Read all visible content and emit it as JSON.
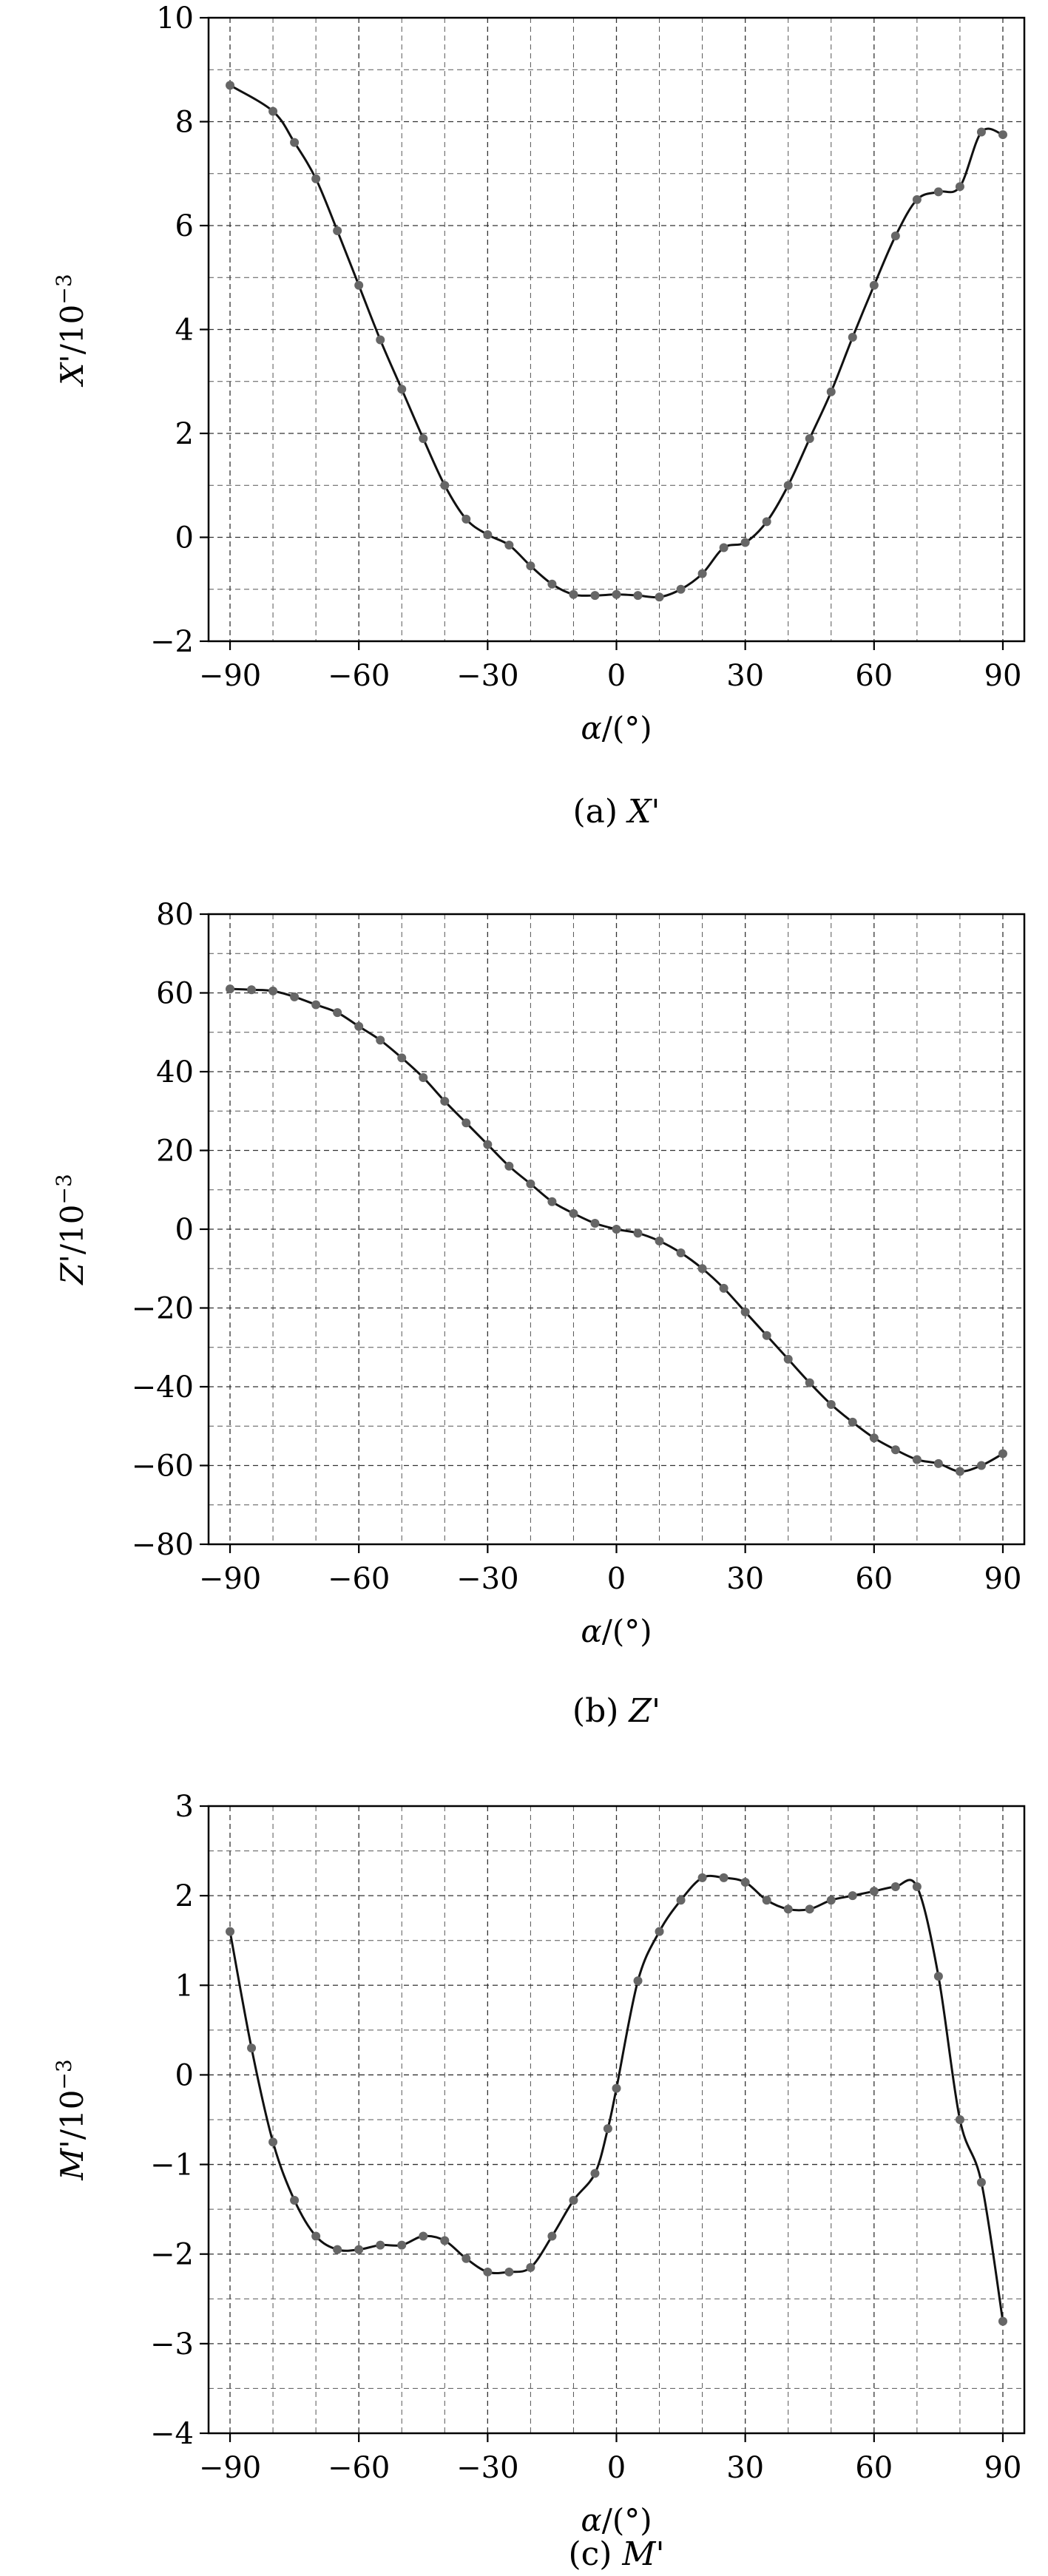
{
  "chart_data": [
    {
      "id": "X",
      "type": "line",
      "ylabel": "X'/10⁻³",
      "ylabel_main": "X'",
      "ylabel_unit": "/10",
      "ylabel_exp": "−3",
      "xlabel_main": "α",
      "xlabel_unit": "/(°)",
      "caption_prefix": "(a) ",
      "caption_var": "X'",
      "xlim": [
        -95,
        95
      ],
      "ylim": [
        -2,
        10
      ],
      "xticks": [
        -90,
        -60,
        -30,
        0,
        30,
        60,
        90
      ],
      "xtick_labels": [
        "−90",
        "−60",
        "−30",
        "0",
        "30",
        "60",
        "90"
      ],
      "yticks": [
        -2,
        0,
        2,
        4,
        6,
        8,
        10
      ],
      "ytick_labels": [
        "−2",
        "0",
        "2",
        "4",
        "6",
        "8",
        "10"
      ],
      "x_minor_step": 10,
      "y_minor_step": 1,
      "grid": true,
      "x": [
        -90,
        -80,
        -75,
        -70,
        -65,
        -60,
        -55,
        -50,
        -45,
        -40,
        -35,
        -30,
        -25,
        -20,
        -15,
        -10,
        -5,
        0,
        5,
        10,
        15,
        20,
        25,
        30,
        35,
        40,
        45,
        50,
        55,
        60,
        65,
        70,
        75,
        80,
        85,
        90
      ],
      "y": [
        8.7,
        8.2,
        7.6,
        6.9,
        5.9,
        4.85,
        3.8,
        2.85,
        1.9,
        1.0,
        0.35,
        0.05,
        -0.15,
        -0.55,
        -0.9,
        -1.1,
        -1.12,
        -1.1,
        -1.12,
        -1.15,
        -1.0,
        -0.7,
        -0.2,
        -0.1,
        0.3,
        1.0,
        1.9,
        2.8,
        3.85,
        4.85,
        5.8,
        6.5,
        6.65,
        6.75,
        7.8,
        7.75
      ]
    },
    {
      "id": "Z",
      "type": "line",
      "ylabel": "Z'/10⁻³",
      "ylabel_main": "Z'",
      "ylabel_unit": "/10",
      "ylabel_exp": "−3",
      "xlabel_main": "α",
      "xlabel_unit": "/(°)",
      "caption_prefix": "(b) ",
      "caption_var": "Z'",
      "xlim": [
        -95,
        95
      ],
      "ylim": [
        -80,
        80
      ],
      "xticks": [
        -90,
        -60,
        -30,
        0,
        30,
        60,
        90
      ],
      "xtick_labels": [
        "−90",
        "−60",
        "−30",
        "0",
        "30",
        "60",
        "90"
      ],
      "yticks": [
        -80,
        -60,
        -40,
        -20,
        0,
        20,
        40,
        60,
        80
      ],
      "ytick_labels": [
        "−80",
        "−60",
        "−40",
        "−20",
        "0",
        "20",
        "40",
        "60",
        "80"
      ],
      "x_minor_step": 10,
      "y_minor_step": 10,
      "grid": true,
      "x": [
        -90,
        -85,
        -80,
        -75,
        -70,
        -65,
        -60,
        -55,
        -50,
        -45,
        -40,
        -35,
        -30,
        -25,
        -20,
        -15,
        -10,
        -5,
        0,
        5,
        10,
        15,
        20,
        25,
        30,
        35,
        40,
        45,
        50,
        55,
        60,
        65,
        70,
        75,
        80,
        85,
        90
      ],
      "y": [
        61,
        60.8,
        60.5,
        59,
        57,
        55,
        51.5,
        48,
        43.5,
        38.5,
        32.5,
        27,
        21.5,
        16,
        11.5,
        7,
        4,
        1.5,
        0,
        -1,
        -3,
        -6,
        -10,
        -15,
        -21,
        -27,
        -33,
        -39,
        -44.5,
        -49,
        -53,
        -56,
        -58.5,
        -59.5,
        -61.5,
        -60,
        -57
      ]
    },
    {
      "id": "M",
      "type": "line",
      "ylabel": "M'/10⁻³",
      "ylabel_main": "M'",
      "ylabel_unit": "/10",
      "ylabel_exp": "−3",
      "xlabel_main": "α",
      "xlabel_unit": "/(°)",
      "caption_prefix": "(c) ",
      "caption_var": "M'",
      "xlim": [
        -95,
        95
      ],
      "ylim": [
        -4,
        3
      ],
      "xticks": [
        -90,
        -60,
        -30,
        0,
        30,
        60,
        90
      ],
      "xtick_labels": [
        "−90",
        "−60",
        "−30",
        "0",
        "30",
        "60",
        "90"
      ],
      "yticks": [
        -4,
        -3,
        -2,
        -1,
        0,
        1,
        2,
        3
      ],
      "ytick_labels": [
        "−4",
        "−3",
        "−2",
        "−1",
        "0",
        "1",
        "2",
        "3"
      ],
      "x_minor_step": 10,
      "y_minor_step": 0.5,
      "grid": true,
      "x": [
        -90,
        -85,
        -80,
        -75,
        -70,
        -65,
        -60,
        -55,
        -50,
        -45,
        -40,
        -35,
        -30,
        -25,
        -20,
        -15,
        -10,
        -5,
        -2,
        0,
        5,
        10,
        15,
        20,
        25,
        30,
        35,
        40,
        45,
        50,
        55,
        60,
        65,
        70,
        75,
        80,
        85,
        90
      ],
      "y": [
        1.6,
        0.3,
        -0.75,
        -1.4,
        -1.8,
        -1.95,
        -1.95,
        -1.9,
        -1.9,
        -1.8,
        -1.85,
        -2.05,
        -2.2,
        -2.2,
        -2.15,
        -1.8,
        -1.4,
        -1.1,
        -0.6,
        -0.15,
        1.05,
        1.6,
        1.95,
        2.2,
        2.2,
        2.15,
        1.95,
        1.85,
        1.85,
        1.95,
        2.0,
        2.05,
        2.1,
        2.1,
        1.1,
        -0.5,
        -1.2,
        -2.75
      ]
    }
  ]
}
